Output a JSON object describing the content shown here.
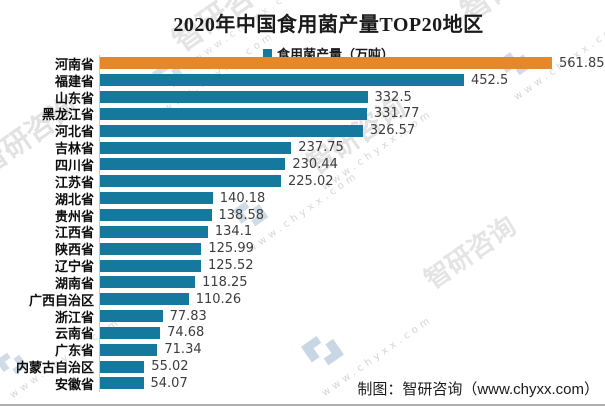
{
  "title": "2020年中国食用菌产量TOP20地区",
  "legend": {
    "label": "食用菌产量（万吨）"
  },
  "chart_data": {
    "type": "bar",
    "orientation": "horizontal",
    "title": "2020年中国食用菌产量TOP20地区",
    "series_name": "食用菌产量（万吨）",
    "unit": "万吨",
    "categories": [
      "河南省",
      "福建省",
      "山东省",
      "黑龙江省",
      "河北省",
      "吉林省",
      "四川省",
      "江苏省",
      "湖北省",
      "贵州省",
      "江西省",
      "陕西省",
      "辽宁省",
      "湖南省",
      "广西自治区",
      "浙江省",
      "云南省",
      "广东省",
      "内蒙古自治区",
      "安徽省"
    ],
    "values": [
      561.85,
      452.5,
      332.5,
      331.77,
      326.57,
      237.75,
      230.44,
      225.02,
      140.18,
      138.58,
      134.1,
      125.99,
      125.52,
      118.25,
      110.26,
      77.83,
      74.68,
      71.34,
      55.02,
      54.07
    ],
    "value_labels": [
      "561.85",
      "452.5",
      "332.5",
      "331.77",
      "326.57",
      "237.75",
      "230.44",
      "225.02",
      "140.18",
      "138.58",
      "134.1",
      "125.99",
      "125.52",
      "118.25",
      "110.26",
      "77.83",
      "74.68",
      "71.34",
      "55.02",
      "54.07"
    ],
    "xlim": [
      0,
      600
    ],
    "grid": false,
    "legend_position": "top",
    "bar_color": "#15799e",
    "highlight_index": 0,
    "highlight_color": "#e2882d"
  },
  "footer": {
    "attribution": "制图：智研咨询（www.chyxx.com）"
  },
  "watermark": {
    "brand": "智研咨询",
    "url": "www.chyxx.com"
  }
}
